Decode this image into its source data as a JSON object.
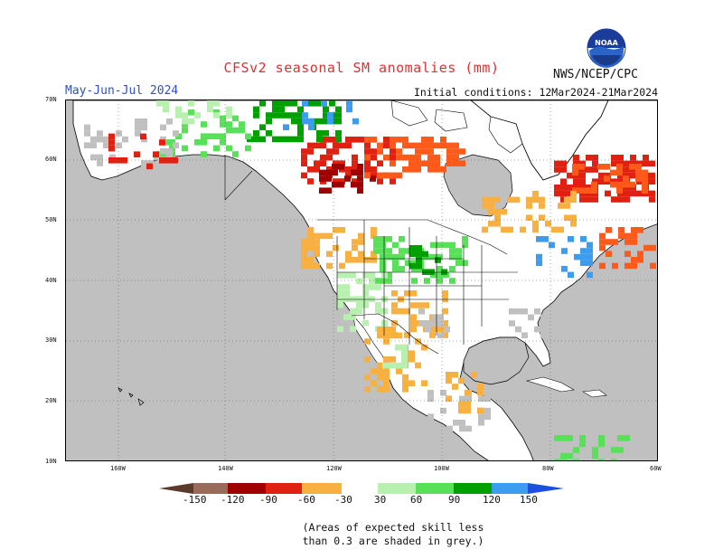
{
  "header": {
    "title": "CFSv2 seasonal SM anomalies (mm)",
    "season": "May-Jun-Jul 2024",
    "initial_conditions": "Initial conditions: 12Mar2024-21Mar2024",
    "agency": "NWS/NCEP/CPC",
    "logo_text": "NOAA"
  },
  "map": {
    "lat_labels": [
      "70N",
      "60N",
      "50N",
      "40N",
      "30N",
      "20N",
      "10N"
    ],
    "lon_labels": [
      "160W",
      "140W",
      "120W",
      "100W",
      "80W",
      "60W"
    ],
    "colors": {
      "ocean": "#c0c0c0",
      "land": "#ffffff",
      "grey_noskill": "#c0c0c0"
    }
  },
  "colorbar": {
    "labels": [
      "-150",
      "-120",
      "-90",
      "-60",
      "-30",
      "30",
      "60",
      "90",
      "120",
      "150"
    ],
    "colors": [
      "#5a3a2a",
      "#9a6a5a",
      "#a00000",
      "#e02010",
      "#ff5a1a",
      "#f8b040",
      "#ffffff",
      "#b8f0b0",
      "#58e058",
      "#00a000",
      "#3c9cf0",
      "#1c50e0"
    ]
  },
  "note": {
    "line1": "(Areas of expected skill less",
    "line2": "than 0.3 are shaded in grey.)"
  }
}
